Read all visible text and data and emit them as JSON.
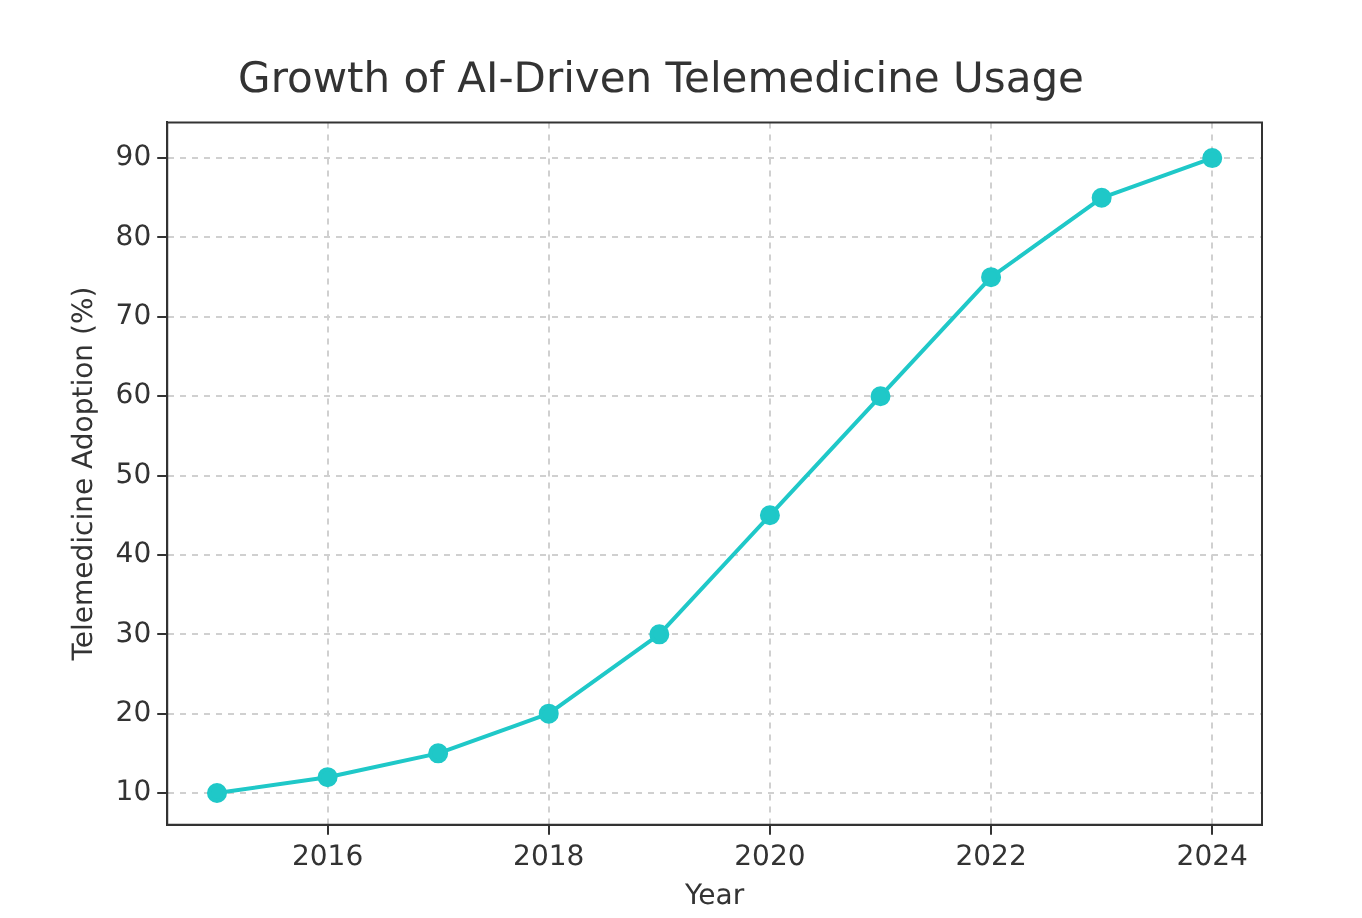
{
  "chart_data": {
    "type": "line",
    "title": "Growth of AI-Driven Telemedicine Usage",
    "xlabel": "Year",
    "ylabel": "Telemedicine Adoption (%)",
    "x": [
      2015,
      2016,
      2017,
      2018,
      2019,
      2020,
      2021,
      2022,
      2023,
      2024
    ],
    "series": [
      {
        "color": "#1fc8c8",
        "values": [
          10,
          12,
          15,
          20,
          30,
          45,
          60,
          75,
          85,
          90
        ]
      }
    ],
    "xlim": [
      2014.55,
      2024.45
    ],
    "xticks": [
      2016,
      2018,
      2020,
      2022,
      2024
    ],
    "ylim": [
      6,
      94.5
    ],
    "yticks": [
      10,
      20,
      30,
      40,
      50,
      60,
      70,
      80,
      90
    ],
    "grid": true,
    "legend": false,
    "marker": "circle",
    "line_style": "solid"
  }
}
